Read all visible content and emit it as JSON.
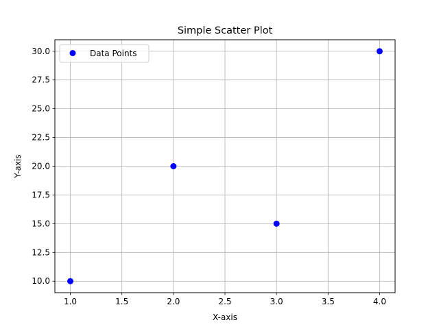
{
  "chart_data": {
    "type": "scatter",
    "title": "Simple Scatter Plot",
    "xlabel": "X-axis",
    "ylabel": "Y-axis",
    "x": [
      1,
      2,
      3,
      4
    ],
    "series": [
      {
        "name": "Data Points",
        "values": [
          10,
          20,
          15,
          30
        ],
        "color": "#0000ff"
      }
    ],
    "xlim": [
      0.85,
      4.15
    ],
    "ylim": [
      9.0,
      31.0
    ],
    "xticks": [
      1.0,
      1.5,
      2.0,
      2.5,
      3.0,
      3.5,
      4.0
    ],
    "xtick_labels": [
      "1.0",
      "1.5",
      "2.0",
      "2.5",
      "3.0",
      "3.5",
      "4.0"
    ],
    "yticks": [
      10.0,
      12.5,
      15.0,
      17.5,
      20.0,
      22.5,
      25.0,
      27.5,
      30.0
    ],
    "ytick_labels": [
      "10.0",
      "12.5",
      "15.0",
      "17.5",
      "20.0",
      "22.5",
      "25.0",
      "27.5",
      "30.0"
    ],
    "grid": true,
    "legend_position": "upper-left"
  }
}
